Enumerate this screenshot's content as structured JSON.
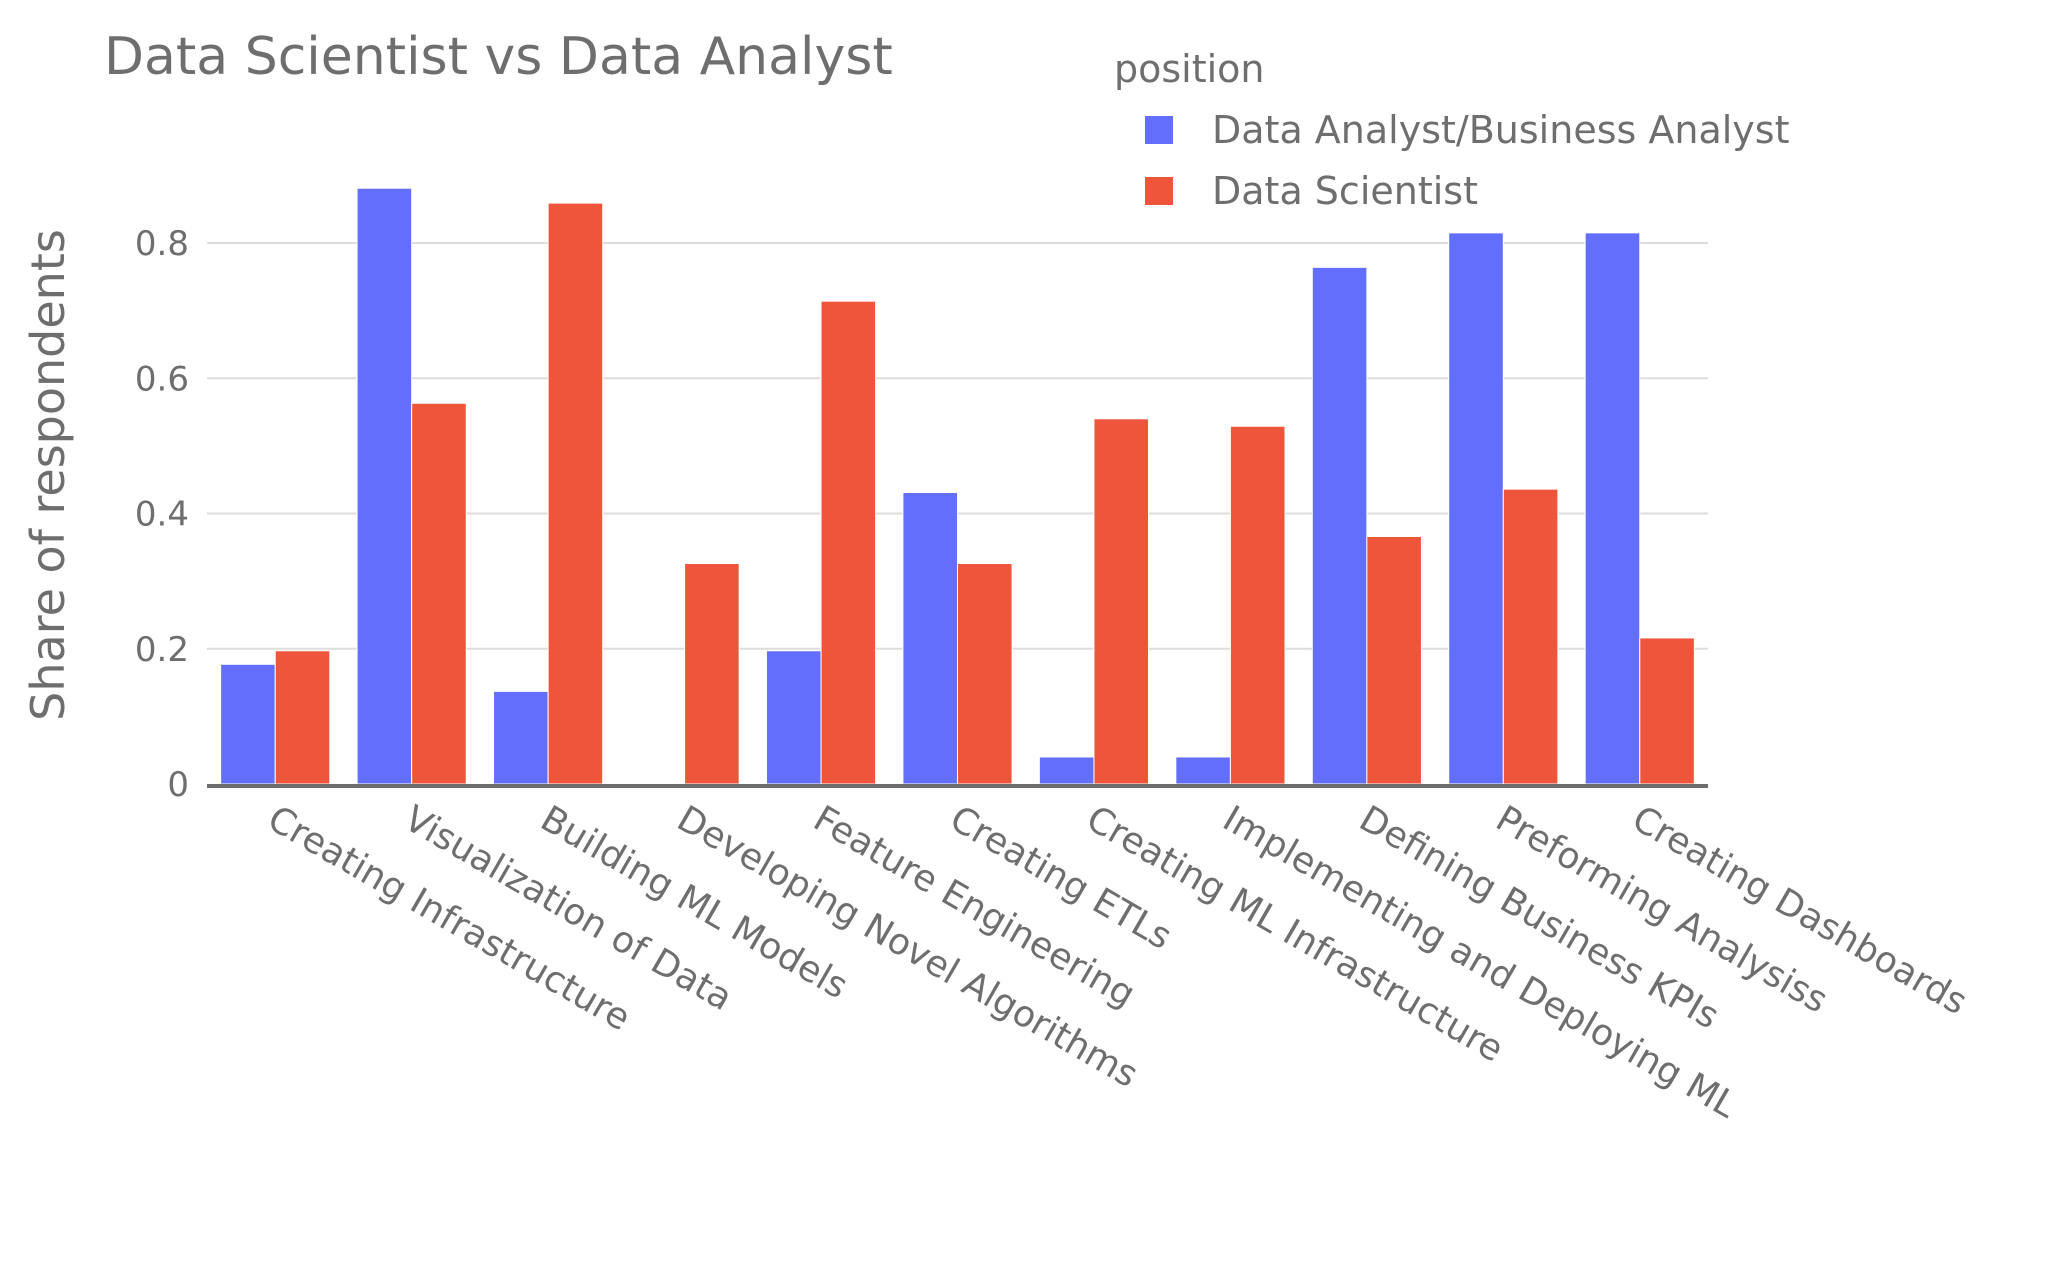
{
  "chart_data": {
    "type": "bar",
    "barmode": "group",
    "title": "Data Scientist vs Data Analyst",
    "xlabel": "",
    "ylabel": "Share of respondents",
    "ylim": [
      0,
      0.95
    ],
    "yticks": [
      0,
      0.2,
      0.4,
      0.6,
      0.8
    ],
    "ytick_labels": [
      "0",
      "0.2",
      "0.4",
      "0.6",
      "0.8"
    ],
    "grid": true,
    "legend": {
      "title": "position",
      "placement": "top-right"
    },
    "categories": [
      "Creating Infrastructure",
      "Visualization of Data",
      "Building ML Models",
      "Developing Novel Algorithms",
      "Feature Engineering",
      "Creating ETLs",
      "Creating ML Infrastructure",
      "Implementing and Deploying ML",
      "Defining Business KPIs",
      "Preforming Analysiss",
      "Creating Dashboards"
    ],
    "series": [
      {
        "name": "Data Analyst/Business Analyst",
        "color": "#636efa",
        "values": [
          0.177,
          0.881,
          0.137,
          0.0,
          0.197,
          0.431,
          0.04,
          0.04,
          0.764,
          0.815,
          0.815
        ]
      },
      {
        "name": "Data Scientist",
        "color": "#ef553b",
        "values": [
          0.197,
          0.563,
          0.859,
          0.326,
          0.714,
          0.326,
          0.54,
          0.529,
          0.366,
          0.436,
          0.216
        ]
      }
    ]
  }
}
